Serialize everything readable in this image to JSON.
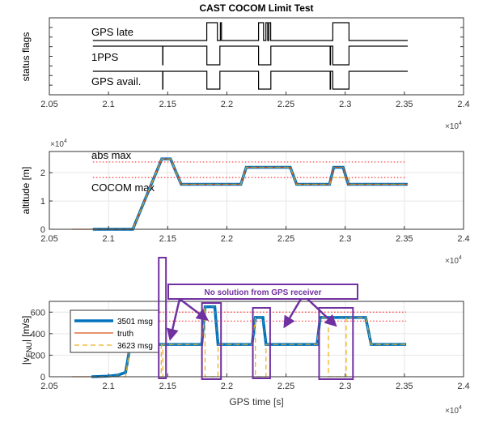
{
  "figure_title": "CAST COCOM Limit Test",
  "colors": {
    "s3501": "#0072BD",
    "truth": "#D95319",
    "s3623": "#EDB120",
    "limit": "#FF3333",
    "annotation": "#7030A0",
    "flags": "#000000"
  },
  "chart_data": [
    {
      "type": "line",
      "subplot": "status",
      "title": "CAST COCOM Limit Test",
      "ylabel": "status flags",
      "xlabel": "",
      "xlim": [
        20500,
        24000
      ],
      "xticks": [
        "2.05",
        "2.1",
        "2.15",
        "2.2",
        "2.25",
        "2.3",
        "2.35",
        "2.4"
      ],
      "x_exponent": "×10",
      "x_exponent_power": "4",
      "grid": false,
      "series": [
        {
          "name": "GPS late",
          "points": [
            [
              20868,
              0
            ],
            [
              21830,
              0
            ],
            [
              21830,
              1
            ],
            [
              21920,
              1
            ],
            [
              21920,
              0
            ],
            [
              21945,
              0
            ],
            [
              21945,
              1
            ],
            [
              21955,
              1
            ],
            [
              21955,
              0
            ],
            [
              22268,
              0
            ],
            [
              22268,
              1
            ],
            [
              22310,
              1
            ],
            [
              22310,
              0
            ],
            [
              22330,
              0
            ],
            [
              22330,
              1
            ],
            [
              22345,
              1
            ],
            [
              22345,
              0
            ],
            [
              22355,
              0
            ],
            [
              22355,
              1
            ],
            [
              22370,
              1
            ],
            [
              22370,
              0
            ],
            [
              22895,
              0
            ],
            [
              22895,
              1
            ],
            [
              23032,
              1
            ],
            [
              23032,
              0
            ],
            [
              23528,
              0
            ]
          ]
        },
        {
          "name": "1PPS",
          "points": [
            [
              20868,
              1
            ],
            [
              21458,
              1
            ],
            [
              21458,
              0
            ],
            [
              21460,
              0
            ],
            [
              21460,
              1
            ],
            [
              21831,
              1
            ],
            [
              21831,
              0
            ],
            [
              21941,
              0
            ],
            [
              21941,
              1
            ],
            [
              22268,
              1
            ],
            [
              22268,
              0
            ],
            [
              22372,
              0
            ],
            [
              22372,
              1
            ],
            [
              22873,
              1
            ],
            [
              22873,
              0
            ],
            [
              22876,
              0
            ],
            [
              22876,
              1
            ],
            [
              22895,
              1
            ],
            [
              22895,
              0
            ],
            [
              23032,
              0
            ],
            [
              23032,
              1
            ],
            [
              23528,
              1
            ]
          ]
        },
        {
          "name": "GPS avail.",
          "points": [
            [
              20868,
              1
            ],
            [
              21458,
              1
            ],
            [
              21458,
              0
            ],
            [
              21460,
              0
            ],
            [
              21460,
              1
            ],
            [
              21831,
              1
            ],
            [
              21831,
              0
            ],
            [
              21941,
              0
            ],
            [
              21941,
              1
            ],
            [
              22268,
              1
            ],
            [
              22268,
              0
            ],
            [
              22372,
              0
            ],
            [
              22372,
              1
            ],
            [
              22873,
              1
            ],
            [
              22873,
              0
            ],
            [
              22876,
              0
            ],
            [
              22876,
              1
            ],
            [
              22895,
              1
            ],
            [
              22895,
              0
            ],
            [
              23032,
              0
            ],
            [
              23032,
              1
            ],
            [
              23528,
              1
            ]
          ]
        }
      ]
    },
    {
      "type": "line",
      "subplot": "altitude",
      "ylabel": "altitude [m]",
      "xlabel": "",
      "xlim": [
        20500,
        24000
      ],
      "ylim": [
        0,
        2.75
      ],
      "y_scale_note": "×10",
      "y_exponent_power": "4",
      "xticks": [
        "2.05",
        "2.1",
        "2.15",
        "2.2",
        "2.25",
        "2.3",
        "2.35",
        "2.4"
      ],
      "yticks": [
        "0",
        "1",
        "2"
      ],
      "x_exponent": "×10",
      "x_exponent_power": "4",
      "grid": true,
      "limits": [
        {
          "label": "abs max",
          "value": 2.38
        },
        {
          "label": "COCOM max",
          "value": 1.83
        }
      ],
      "series": [
        {
          "key": "truth",
          "points": [
            [
              20691,
              0
            ],
            [
              21205,
              0
            ],
            [
              21450,
              2.49
            ],
            [
              21523,
              2.49
            ],
            [
              21614,
              1.59
            ],
            [
              22118,
              1.59
            ],
            [
              22164,
              2.19
            ],
            [
              22536,
              2.19
            ],
            [
              22590,
              1.59
            ],
            [
              22868,
              1.59
            ],
            [
              22903,
              2.19
            ],
            [
              22982,
              2.19
            ],
            [
              23026,
              1.59
            ],
            [
              23528,
              1.59
            ]
          ]
        },
        {
          "key": "s3501",
          "points": [
            [
              20868,
              0
            ],
            [
              21205,
              0
            ],
            [
              21450,
              2.49
            ],
            [
              21523,
              2.49
            ],
            [
              21614,
              1.59
            ],
            [
              22118,
              1.59
            ],
            [
              22164,
              2.19
            ],
            [
              22536,
              2.19
            ],
            [
              22590,
              1.59
            ],
            [
              22868,
              1.59
            ],
            [
              22903,
              2.19
            ],
            [
              22982,
              2.19
            ],
            [
              23026,
              1.59
            ],
            [
              23528,
              1.59
            ]
          ]
        },
        {
          "key": "s3623",
          "points": [
            [
              20868,
              0
            ],
            [
              21205,
              0
            ],
            [
              21450,
              2.49
            ],
            [
              21523,
              2.49
            ],
            [
              21614,
              1.59
            ],
            [
              22118,
              1.59
            ],
            [
              22164,
              2.19
            ],
            [
              22536,
              2.19
            ],
            [
              22590,
              1.59
            ],
            [
              22868,
              1.59
            ],
            [
              22895,
              1.83
            ],
            [
              23032,
              1.83
            ],
            [
              23040,
              1.59
            ],
            [
              23528,
              1.59
            ]
          ]
        }
      ]
    },
    {
      "type": "line",
      "subplot": "velocity",
      "ylabel": "|v",
      "ylabel_sub": "ENU",
      "ylabel_unit": "| [m/s]",
      "xlabel": "GPS time [s]",
      "xlim": [
        20500,
        24000
      ],
      "ylim": [
        0,
        700
      ],
      "xticks": [
        "2.05",
        "2.1",
        "2.15",
        "2.2",
        "2.25",
        "2.3",
        "2.35",
        "2.4"
      ],
      "yticks": [
        "0",
        "200",
        "400",
        "600"
      ],
      "x_exponent": "×10",
      "x_exponent_power": "4",
      "grid": true,
      "legend_placement": "left",
      "limits": [
        {
          "value": 600
        },
        {
          "value": 517
        }
      ],
      "series": [
        {
          "key": "truth",
          "name": "truth",
          "points": [
            [
              20692,
              0
            ],
            [
              20856,
              0
            ]
          ]
        },
        {
          "key": "s3501",
          "name": "3501 msg",
          "points": [
            [
              20856,
              0
            ],
            [
              21000,
              5
            ],
            [
              21080,
              15
            ],
            [
              21144,
              40
            ],
            [
              21185,
              300
            ],
            [
              21788,
              300
            ],
            [
              21816,
              650
            ],
            [
              21898,
              650
            ],
            [
              21925,
              300
            ],
            [
              22213,
              300
            ],
            [
              22241,
              550
            ],
            [
              22305,
              550
            ],
            [
              22331,
              300
            ],
            [
              22762,
              300
            ],
            [
              22789,
              550
            ],
            [
              23173,
              550
            ],
            [
              23219,
              300
            ],
            [
              23515,
              300
            ]
          ]
        },
        {
          "key": "s3623",
          "name": "3623 msg",
          "points": [
            [
              20856,
              0
            ],
            [
              21144,
              0
            ],
            [
              21185,
              300
            ],
            [
              21446,
              300
            ],
            [
              21446,
              0
            ],
            [
              21459,
              0
            ],
            [
              21459,
              300
            ],
            [
              21788,
              300
            ],
            [
              21816,
              650
            ],
            [
              21816,
              0
            ],
            [
              21925,
              0
            ],
            [
              21925,
              300
            ],
            [
              22213,
              300
            ],
            [
              22241,
              550
            ],
            [
              22241,
              0
            ],
            [
              22331,
              0
            ],
            [
              22331,
              300
            ],
            [
              22762,
              300
            ],
            [
              22789,
              550
            ],
            [
              22858,
              550
            ],
            [
              22858,
              0
            ],
            [
              23008,
              0
            ],
            [
              23008,
              550
            ],
            [
              23173,
              550
            ],
            [
              23219,
              300
            ],
            [
              23515,
              300
            ]
          ]
        }
      ],
      "annotation": "No solution from GPS receiver"
    }
  ]
}
